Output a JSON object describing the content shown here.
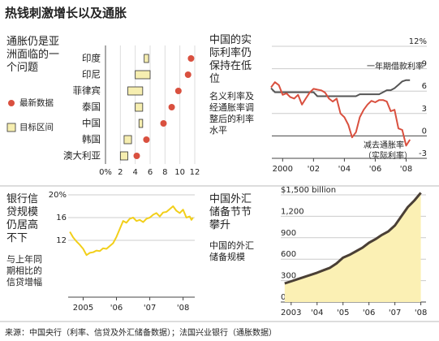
{
  "title": "热钱刺激增长以及通胀",
  "source": "来源：中国央行（利率、信贷及外汇储备数据）；法国兴业银行（通胀数据）",
  "chart_data": [
    {
      "type": "dot",
      "title": "通胀仍是亚洲面临的一个问题",
      "categories": [
        "印度",
        "印尼",
        "菲律宾",
        "泰国",
        "中国",
        "韩国",
        "澳大利亚"
      ],
      "series": [
        {
          "name": "最新数据",
          "color": "#d9503f",
          "values": [
            11.5,
            11.1,
            9.8,
            8.9,
            7.8,
            5.5,
            4.2
          ]
        },
        {
          "name": "目标区间",
          "color": "#f6eeb0",
          "values": [
            [
              5.2,
              5.8
            ],
            [
              4,
              6
            ],
            [
              3,
              5
            ],
            [
              4,
              5
            ],
            [
              4.5,
              5
            ],
            [
              2.5,
              3.5
            ],
            [
              2,
              3
            ]
          ]
        }
      ],
      "xlim": [
        0,
        12
      ],
      "xticks": [
        {
          "value": 0,
          "label": "0%"
        },
        2,
        4,
        6,
        8,
        10,
        12
      ],
      "grid": true
    },
    {
      "type": "line",
      "title": "中国的实际利率仍保持在低位",
      "subtitle": "名义利率及经通胀率调整后的利率水平",
      "x": [
        1999.25,
        1999.5,
        1999.75,
        2000,
        2000.25,
        2000.5,
        2000.75,
        2001,
        2001.25,
        2001.5,
        2001.75,
        2002,
        2002.25,
        2002.5,
        2002.75,
        2003,
        2003.25,
        2003.5,
        2003.75,
        2004,
        2004.25,
        2004.5,
        2004.75,
        2005,
        2005.25,
        2005.5,
        2005.75,
        2006,
        2006.25,
        2006.5,
        2006.75,
        2007,
        2007.25,
        2007.5,
        2007.75,
        2008,
        2008.25
      ],
      "series": [
        {
          "name": "一年期借款利率",
          "color": "#555555",
          "values": [
            6.39,
            5.85,
            5.85,
            5.85,
            5.85,
            5.85,
            5.85,
            5.85,
            5.85,
            5.85,
            5.85,
            5.85,
            5.31,
            5.31,
            5.31,
            5.31,
            5.31,
            5.31,
            5.31,
            5.31,
            5.31,
            5.31,
            5.31,
            5.58,
            5.58,
            5.58,
            5.58,
            5.58,
            5.58,
            5.85,
            6.12,
            6.12,
            6.39,
            6.84,
            7.29,
            7.47,
            7.47
          ]
        },
        {
          "name": "减去通胀率（实际利率）",
          "color": "#d9503f",
          "values": [
            6.5,
            7.2,
            6.8,
            5.5,
            5.7,
            5.2,
            5.0,
            5.5,
            4.2,
            5.0,
            5.8,
            6.3,
            6.2,
            6.1,
            5.8,
            5.0,
            4.6,
            5.0,
            3.0,
            2.5,
            1.5,
            -0.2,
            0.5,
            2.5,
            3.5,
            4.2,
            4.7,
            4.5,
            4.8,
            4.8,
            4.6,
            3.3,
            3.5,
            1.0,
            0.8,
            -1.3,
            -0.5
          ]
        }
      ],
      "xlim": [
        1999.3,
        2008.5
      ],
      "xticks": [
        2000,
        {
          "value": 2002,
          "label": "'02"
        },
        {
          "value": 2004,
          "label": "'04"
        },
        {
          "value": 2006,
          "label": "'06"
        },
        {
          "value": 2008,
          "label": "'08"
        }
      ],
      "ylim": [
        -3,
        12
      ],
      "yticks": [
        {
          "value": 12,
          "label": "12%"
        },
        9,
        6,
        3,
        0,
        -3
      ],
      "grid": true
    },
    {
      "type": "line",
      "title": "银行信贷规模仍居高不下",
      "subtitle": "与上年同期相比的信贷增幅",
      "x": [
        2004.6,
        2004.7,
        2004.8,
        2004.9,
        2005.0,
        2005.1,
        2005.2,
        2005.3,
        2005.4,
        2005.5,
        2005.6,
        2005.7,
        2005.8,
        2005.9,
        2006.0,
        2006.1,
        2006.2,
        2006.3,
        2006.4,
        2006.5,
        2006.6,
        2006.7,
        2006.8,
        2006.9,
        2007.0,
        2007.1,
        2007.2,
        2007.3,
        2007.4,
        2007.5,
        2007.6,
        2007.7,
        2007.8,
        2007.9,
        2008.0,
        2008.1,
        2008.2,
        2008.25,
        2008.3
      ],
      "series": [
        {
          "color": "#f2cf1a",
          "values": [
            13.5,
            12.5,
            11.8,
            11.2,
            10.5,
            9.4,
            9.8,
            9.9,
            10.2,
            10.1,
            10.6,
            10.5,
            11.0,
            11.5,
            12.6,
            14.0,
            15.4,
            15.1,
            15.8,
            16.0,
            15.4,
            15.6,
            15.2,
            15.8,
            16.0,
            16.5,
            16.8,
            16.2,
            16.9,
            17.0,
            17.5,
            18.0,
            17.2,
            16.8,
            17.4,
            16.0,
            16.2,
            15.6,
            16.0
          ]
        }
      ],
      "xlim": [
        2004.55,
        2008.35
      ],
      "xticks": [
        2005,
        {
          "value": 2006,
          "label": "'06"
        },
        {
          "value": 2007,
          "label": "'07"
        },
        {
          "value": 2008,
          "label": "'08"
        }
      ],
      "ylim": [
        2,
        20
      ],
      "yticks": [
        {
          "value": 20,
          "label": "20%"
        },
        16,
        12
      ],
      "grid": true
    },
    {
      "type": "area",
      "title": "中国外汇储备节节攀升",
      "subtitle": "中国的外汇储备规模",
      "x": [
        2002.75,
        2003,
        2003.25,
        2003.5,
        2003.75,
        2004,
        2004.25,
        2004.5,
        2004.75,
        2005,
        2005.25,
        2005.5,
        2005.75,
        2006,
        2006.25,
        2006.5,
        2006.75,
        2007,
        2007.25,
        2007.5,
        2007.75,
        2008
      ],
      "series": [
        {
          "color": "#4a3f35",
          "fill": "#fbf0b4",
          "values": [
            260,
            290,
            320,
            350,
            380,
            410,
            445,
            480,
            540,
            620,
            660,
            710,
            760,
            830,
            880,
            940,
            990,
            1070,
            1200,
            1330,
            1420,
            1530
          ]
        }
      ],
      "xlim": [
        2002.6,
        2008.2
      ],
      "xticks": [
        2003,
        {
          "value": 2004,
          "label": "'04"
        },
        {
          "value": 2005,
          "label": "'05"
        },
        {
          "value": 2006,
          "label": "'06"
        },
        {
          "value": 2007,
          "label": "'07"
        },
        {
          "value": 2008,
          "label": "'08"
        }
      ],
      "ylim": [
        0,
        1500
      ],
      "yticks": [
        {
          "value": 1500,
          "label": "$1,500 billion"
        },
        {
          "value": 1200,
          "label": "1,200"
        },
        900,
        600,
        300,
        0
      ],
      "grid": true
    }
  ]
}
